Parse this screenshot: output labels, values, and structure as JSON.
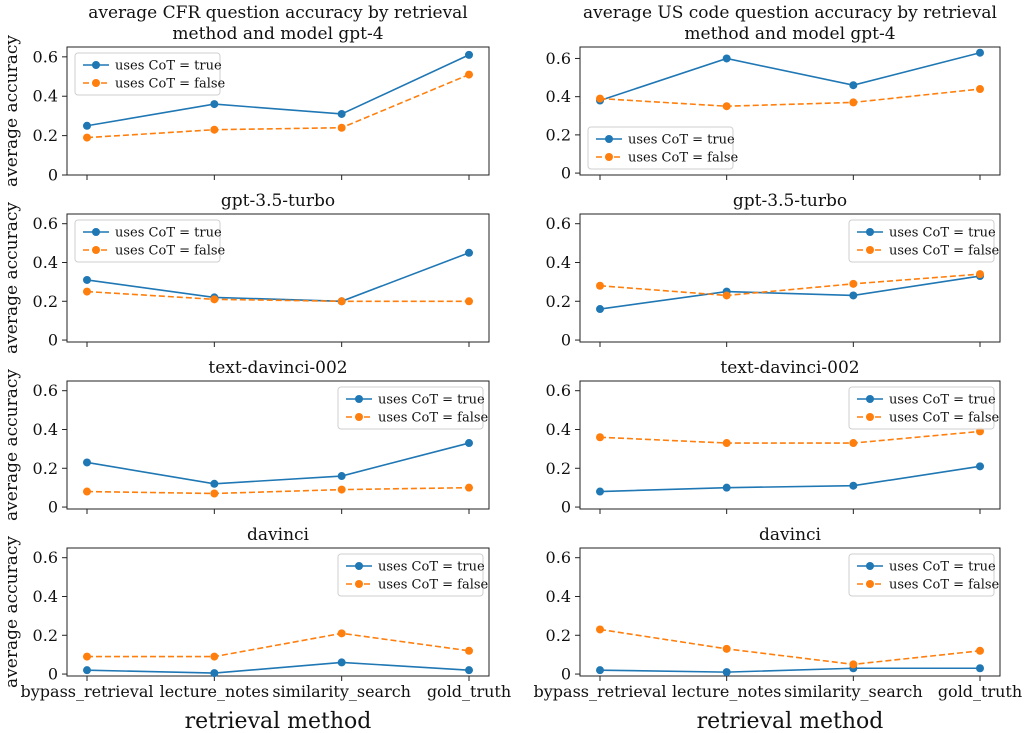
{
  "chart_data": [
    {
      "type": "line",
      "title": "average CFR question accuracy by retrieval method and model gpt-4",
      "title_lines": [
        "average CFR question accuracy by retrieval",
        "method and model gpt-4"
      ],
      "ylabel": "average accuracy",
      "xlabel": "",
      "ylim": [
        0,
        0.65
      ],
      "yticks": [
        "0",
        "0.2",
        "0.4",
        "0.6"
      ],
      "legend_loc": "upper-left",
      "categories": [
        "bypass_retrieval",
        "lecture_notes",
        "similarity_search",
        "gold_truth"
      ],
      "series": [
        {
          "name": "uses CoT = true",
          "color": "#1f77b4",
          "dash": "solid",
          "values": [
            0.25,
            0.36,
            0.31,
            0.61
          ]
        },
        {
          "name": "uses CoT = false",
          "color": "#ff7f0e",
          "dash": "dashed",
          "values": [
            0.19,
            0.23,
            0.24,
            0.51
          ]
        }
      ]
    },
    {
      "type": "line",
      "title": "average US code question accuracy by retrieval method and model gpt-4",
      "title_lines": [
        "average US code question accuracy by retrieval",
        "method and model gpt-4"
      ],
      "ylabel": "",
      "xlabel": "",
      "ylim": [
        -0.01,
        0.66
      ],
      "yticks": [
        "0",
        "0.2",
        "0.4",
        "0.6"
      ],
      "legend_loc": "lower-left",
      "categories": [
        "bypass_retrieval",
        "lecture_notes",
        "similarity_search",
        "gold_truth"
      ],
      "series": [
        {
          "name": "uses CoT = true",
          "color": "#1f77b4",
          "dash": "solid",
          "values": [
            0.38,
            0.6,
            0.46,
            0.63
          ]
        },
        {
          "name": "uses CoT = false",
          "color": "#ff7f0e",
          "dash": "dashed",
          "values": [
            0.39,
            0.35,
            0.37,
            0.44
          ]
        }
      ]
    },
    {
      "type": "line",
      "title": "gpt-3.5-turbo",
      "title_lines": [
        "gpt-3.5-turbo"
      ],
      "ylabel": "average accuracy",
      "xlabel": "",
      "ylim": [
        -0.01,
        0.65
      ],
      "yticks": [
        "0",
        "0.2",
        "0.4",
        "0.6"
      ],
      "legend_loc": "upper-left",
      "categories": [
        "bypass_retrieval",
        "lecture_notes",
        "similarity_search",
        "gold_truth"
      ],
      "series": [
        {
          "name": "uses CoT = true",
          "color": "#1f77b4",
          "dash": "solid",
          "values": [
            0.31,
            0.22,
            0.2,
            0.45
          ]
        },
        {
          "name": "uses CoT = false",
          "color": "#ff7f0e",
          "dash": "dashed",
          "values": [
            0.25,
            0.21,
            0.2,
            0.2
          ]
        }
      ]
    },
    {
      "type": "line",
      "title": "gpt-3.5-turbo",
      "title_lines": [
        "gpt-3.5-turbo"
      ],
      "ylabel": "",
      "xlabel": "",
      "ylim": [
        -0.01,
        0.65
      ],
      "yticks": [
        "0",
        "0.2",
        "0.4",
        "0.6"
      ],
      "legend_loc": "upper-right",
      "categories": [
        "bypass_retrieval",
        "lecture_notes",
        "similarity_search",
        "gold_truth"
      ],
      "series": [
        {
          "name": "uses CoT = true",
          "color": "#1f77b4",
          "dash": "solid",
          "values": [
            0.16,
            0.25,
            0.23,
            0.33
          ]
        },
        {
          "name": "uses CoT = false",
          "color": "#ff7f0e",
          "dash": "dashed",
          "values": [
            0.28,
            0.23,
            0.29,
            0.34
          ]
        }
      ]
    },
    {
      "type": "line",
      "title": "text-davinci-002",
      "title_lines": [
        "text-davinci-002"
      ],
      "ylabel": "average accuracy",
      "xlabel": "",
      "ylim": [
        -0.01,
        0.65
      ],
      "yticks": [
        "0",
        "0.2",
        "0.4",
        "0.6"
      ],
      "legend_loc": "upper-right",
      "categories": [
        "bypass_retrieval",
        "lecture_notes",
        "similarity_search",
        "gold_truth"
      ],
      "series": [
        {
          "name": "uses CoT = true",
          "color": "#1f77b4",
          "dash": "solid",
          "values": [
            0.23,
            0.12,
            0.16,
            0.33
          ]
        },
        {
          "name": "uses CoT = false",
          "color": "#ff7f0e",
          "dash": "dashed",
          "values": [
            0.08,
            0.07,
            0.09,
            0.1
          ]
        }
      ]
    },
    {
      "type": "line",
      "title": "text-davinci-002",
      "title_lines": [
        "text-davinci-002"
      ],
      "ylabel": "",
      "xlabel": "",
      "ylim": [
        -0.01,
        0.65
      ],
      "yticks": [
        "0",
        "0.2",
        "0.4",
        "0.6"
      ],
      "legend_loc": "upper-right",
      "categories": [
        "bypass_retrieval",
        "lecture_notes",
        "similarity_search",
        "gold_truth"
      ],
      "series": [
        {
          "name": "uses CoT = true",
          "color": "#1f77b4",
          "dash": "solid",
          "values": [
            0.08,
            0.1,
            0.11,
            0.21
          ]
        },
        {
          "name": "uses CoT = false",
          "color": "#ff7f0e",
          "dash": "dashed",
          "values": [
            0.36,
            0.33,
            0.33,
            0.39
          ]
        }
      ]
    },
    {
      "type": "line",
      "title": "davinci",
      "title_lines": [
        "davinci"
      ],
      "ylabel": "average accuracy",
      "xlabel": "retrieval method",
      "ylim": [
        -0.01,
        0.65
      ],
      "yticks": [
        "0",
        "0.2",
        "0.4",
        "0.6"
      ],
      "legend_loc": "upper-right",
      "categories": [
        "bypass_retrieval",
        "lecture_notes",
        "similarity_search",
        "gold_truth"
      ],
      "series": [
        {
          "name": "uses CoT = true",
          "color": "#1f77b4",
          "dash": "solid",
          "values": [
            0.02,
            0.005,
            0.06,
            0.02
          ]
        },
        {
          "name": "uses CoT = false",
          "color": "#ff7f0e",
          "dash": "dashed",
          "values": [
            0.09,
            0.09,
            0.21,
            0.12
          ]
        }
      ]
    },
    {
      "type": "line",
      "title": "davinci",
      "title_lines": [
        "davinci"
      ],
      "ylabel": "",
      "xlabel": "retrieval method",
      "ylim": [
        -0.01,
        0.65
      ],
      "yticks": [
        "0",
        "0.2",
        "0.4",
        "0.6"
      ],
      "legend_loc": "upper-right",
      "categories": [
        "bypass_retrieval",
        "lecture_notes",
        "similarity_search",
        "gold_truth"
      ],
      "series": [
        {
          "name": "uses CoT = true",
          "color": "#1f77b4",
          "dash": "solid",
          "values": [
            0.02,
            0.01,
            0.03,
            0.03
          ]
        },
        {
          "name": "uses CoT = false",
          "color": "#ff7f0e",
          "dash": "dashed",
          "values": [
            0.23,
            0.13,
            0.05,
            0.12
          ]
        }
      ]
    }
  ]
}
